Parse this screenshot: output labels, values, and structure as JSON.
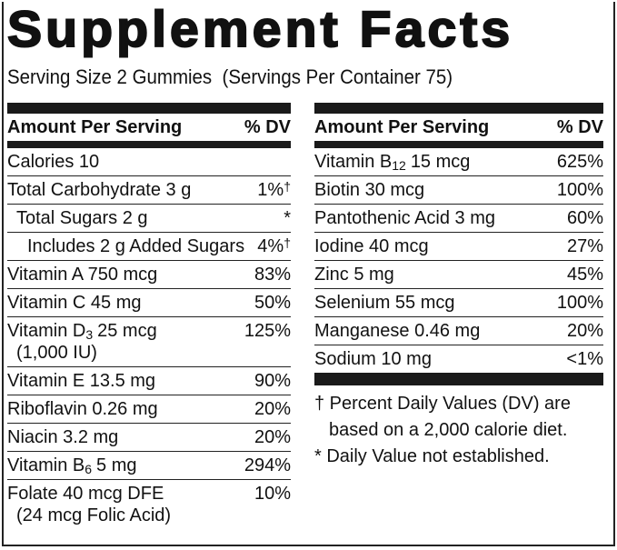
{
  "header": {
    "title": "Supplement Facts",
    "serving": "Serving Size 2 Gummies  (Servings Per Container 75)"
  },
  "left": {
    "amount_heading": "Amount Per Serving",
    "dv_heading": "% DV",
    "rows": [
      {
        "label": "Calories 10"
      },
      {
        "label": "Total Carbohydrate 3 g",
        "dv": "1%",
        "mark": "†"
      },
      {
        "label": "Total Sugars 2 g",
        "dv": "*",
        "level": 1
      },
      {
        "label": "Includes 2 g Added Sugars",
        "dv": "4%",
        "mark": "†",
        "level": 2
      },
      {
        "label": "Vitamin A 750 mcg",
        "dv": "83%"
      },
      {
        "label": "Vitamin C 45 mg",
        "dv": "50%"
      },
      {
        "label": "Vitamin D",
        "sub": "3",
        "rest": "25 mcg",
        "line2": "(1,000 IU)",
        "dv": "125%"
      },
      {
        "label": "Vitamin E 13.5 mg",
        "dv": "90%"
      },
      {
        "label": "Riboflavin 0.26 mg",
        "dv": "20%"
      },
      {
        "label": "Niacin 3.2 mg",
        "dv": "20%"
      },
      {
        "label": "Vitamin B",
        "sub": "6",
        "rest": "5 mg",
        "dv": "294%"
      },
      {
        "label": "Folate 40 mcg DFE",
        "line2": "(24 mcg Folic Acid)",
        "dv": "10%"
      }
    ]
  },
  "right": {
    "amount_heading": "Amount Per Serving",
    "dv_heading": "% DV",
    "rows": [
      {
        "label": "Vitamin B",
        "sub": "12",
        "rest": "15 mcg",
        "dv": "625%"
      },
      {
        "label": "Biotin 30 mcg",
        "dv": "100%"
      },
      {
        "label": "Pantothenic Acid 3 mg",
        "dv": "60%"
      },
      {
        "label": "Iodine 40 mcg",
        "dv": "27%"
      },
      {
        "label": "Zinc 5 mg",
        "dv": "45%"
      },
      {
        "label": "Selenium 55 mcg",
        "dv": "100%"
      },
      {
        "label": "Manganese 0.46 mg",
        "dv": "20%"
      },
      {
        "label": "Sodium 10 mg",
        "dv": "<1%"
      }
    ]
  },
  "footnotes": [
    "† Percent Daily Values (DV) are",
    "based on a 2,000 calorie diet.",
    "* Daily Value not established."
  ]
}
